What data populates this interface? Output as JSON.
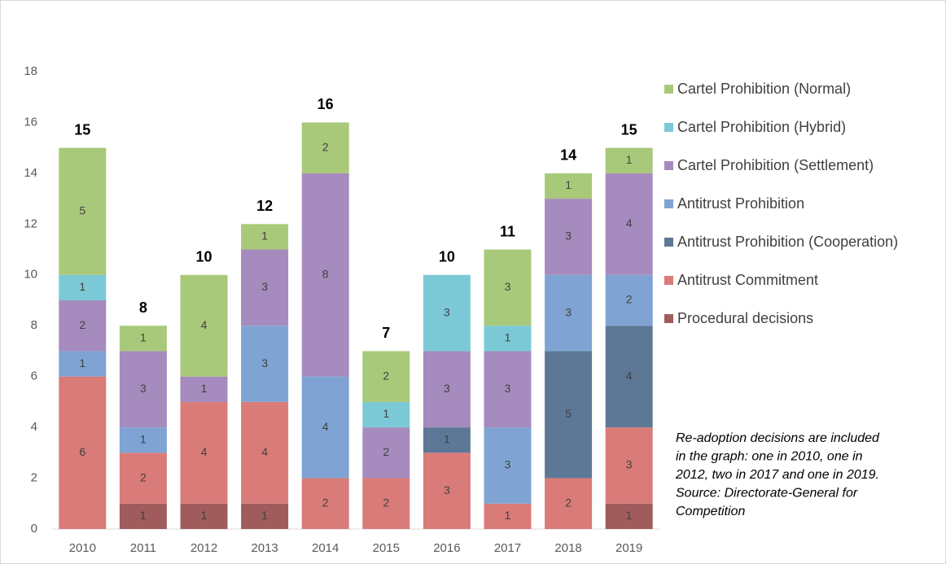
{
  "chart_data": {
    "type": "stacked-bar",
    "categories": [
      "2010",
      "2011",
      "2012",
      "2013",
      "2014",
      "2015",
      "2016",
      "2017",
      "2018",
      "2019"
    ],
    "series": [
      {
        "name": "Procedural decisions",
        "color": "#a05c5c",
        "values": [
          null,
          1,
          1,
          1,
          null,
          null,
          null,
          null,
          null,
          1
        ]
      },
      {
        "name": "Antitrust Commitment",
        "color": "#d97b78",
        "values": [
          6,
          2,
          4,
          4,
          2,
          2,
          3,
          1,
          2,
          3
        ]
      },
      {
        "name": "Antitrust Prohibition (Cooperation)",
        "color": "#5d7897",
        "values": [
          null,
          null,
          null,
          null,
          null,
          null,
          1,
          null,
          5,
          4
        ]
      },
      {
        "name": "Antitrust Prohibition",
        "color": "#7fa4d3",
        "values": [
          1,
          1,
          null,
          3,
          4,
          null,
          null,
          3,
          3,
          2
        ]
      },
      {
        "name": "Cartel Prohibition (Settlement)",
        "color": "#a68bbe",
        "values": [
          2,
          3,
          1,
          3,
          8,
          2,
          3,
          3,
          3,
          4
        ]
      },
      {
        "name": "Cartel Prohibition (Hybrid)",
        "color": "#7bc9d7",
        "values": [
          1,
          null,
          null,
          null,
          null,
          1,
          3,
          1,
          null,
          null
        ]
      },
      {
        "name": "Cartel Prohibition (Normal)",
        "color": "#a9c97a",
        "values": [
          5,
          1,
          4,
          1,
          2,
          2,
          null,
          3,
          1,
          1
        ]
      }
    ],
    "totals": [
      15,
      8,
      10,
      12,
      16,
      7,
      10,
      11,
      14,
      15
    ],
    "ylim": [
      0,
      18
    ],
    "yticks": [
      0,
      2,
      4,
      6,
      8,
      10,
      12,
      14,
      16,
      18
    ],
    "grid": false,
    "annotation": [
      "Re-adoption decisions are included",
      "in the graph: one in 2010, one in",
      "2012, two in 2017 and one in 2019.",
      "Source: Directorate-General for",
      "Competition"
    ]
  }
}
